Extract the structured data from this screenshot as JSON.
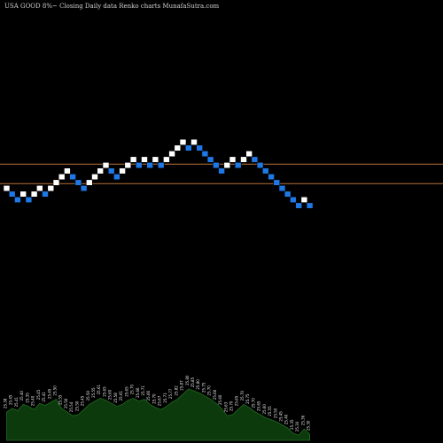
{
  "title": "USA GOOD 8%~  Closing Daily data  Renko  charts MunafaSutra.com",
  "colors": {
    "background": "#000000",
    "up_brick": "#ffffff",
    "down_brick": "#1e78e6",
    "brick_outline": "#000000",
    "level_line": "#b8733a",
    "volume_fill": "#0d3a0d",
    "volume_line": "#1f6a1f",
    "label": "#e8e8e8"
  },
  "chart_data": {
    "type": "renko",
    "title": "USA GOOD 8%~  Closing Daily data  Renko  charts MunafaSutra.com",
    "brick_size": 0.05,
    "bricks": [
      {
        "dir": "up",
        "close": 25.45
      },
      {
        "dir": "down",
        "close": 25.4
      },
      {
        "dir": "down",
        "close": 25.35
      },
      {
        "dir": "up",
        "close": 25.4
      },
      {
        "dir": "down",
        "close": 25.35
      },
      {
        "dir": "up",
        "close": 25.4
      },
      {
        "dir": "up",
        "close": 25.45
      },
      {
        "dir": "down",
        "close": 25.4
      },
      {
        "dir": "up",
        "close": 25.45
      },
      {
        "dir": "up",
        "close": 25.5
      },
      {
        "dir": "up",
        "close": 25.55
      },
      {
        "dir": "up",
        "close": 25.6
      },
      {
        "dir": "down",
        "close": 25.55
      },
      {
        "dir": "down",
        "close": 25.5
      },
      {
        "dir": "down",
        "close": 25.45
      },
      {
        "dir": "up",
        "close": 25.5
      },
      {
        "dir": "up",
        "close": 25.55
      },
      {
        "dir": "up",
        "close": 25.6
      },
      {
        "dir": "up",
        "close": 25.65
      },
      {
        "dir": "down",
        "close": 25.6
      },
      {
        "dir": "down",
        "close": 25.55
      },
      {
        "dir": "up",
        "close": 25.6
      },
      {
        "dir": "up",
        "close": 25.65
      },
      {
        "dir": "up",
        "close": 25.7
      },
      {
        "dir": "down",
        "close": 25.65
      },
      {
        "dir": "up",
        "close": 25.7
      },
      {
        "dir": "down",
        "close": 25.65
      },
      {
        "dir": "up",
        "close": 25.7
      },
      {
        "dir": "down",
        "close": 25.65
      },
      {
        "dir": "up",
        "close": 25.7
      },
      {
        "dir": "up",
        "close": 25.75
      },
      {
        "dir": "up",
        "close": 25.8
      },
      {
        "dir": "up",
        "close": 25.85
      },
      {
        "dir": "down",
        "close": 25.8
      },
      {
        "dir": "up",
        "close": 25.85
      },
      {
        "dir": "down",
        "close": 25.8
      },
      {
        "dir": "down",
        "close": 25.75
      },
      {
        "dir": "down",
        "close": 25.7
      },
      {
        "dir": "down",
        "close": 25.65
      },
      {
        "dir": "down",
        "close": 25.6
      },
      {
        "dir": "up",
        "close": 25.65
      },
      {
        "dir": "up",
        "close": 25.7
      },
      {
        "dir": "down",
        "close": 25.65
      },
      {
        "dir": "up",
        "close": 25.7
      },
      {
        "dir": "up",
        "close": 25.75
      },
      {
        "dir": "down",
        "close": 25.7
      },
      {
        "dir": "down",
        "close": 25.65
      },
      {
        "dir": "down",
        "close": 25.6
      },
      {
        "dir": "down",
        "close": 25.55
      },
      {
        "dir": "down",
        "close": 25.5
      },
      {
        "dir": "down",
        "close": 25.45
      },
      {
        "dir": "down",
        "close": 25.4
      },
      {
        "dir": "down",
        "close": 25.35
      },
      {
        "dir": "down",
        "close": 25.3
      },
      {
        "dir": "up",
        "close": 25.35
      },
      {
        "dir": "down",
        "close": 25.3
      }
    ],
    "reference_levels": [
      25.66,
      25.49
    ],
    "volume": [
      0.55,
      0.62,
      0.58,
      0.7,
      0.66,
      0.6,
      0.72,
      0.68,
      0.74,
      0.8,
      0.62,
      0.55,
      0.48,
      0.5,
      0.6,
      0.7,
      0.76,
      0.82,
      0.78,
      0.72,
      0.66,
      0.7,
      0.78,
      0.82,
      0.76,
      0.8,
      0.7,
      0.64,
      0.6,
      0.66,
      0.74,
      0.8,
      0.9,
      1.0,
      0.96,
      0.92,
      0.86,
      0.8,
      0.72,
      0.62,
      0.48,
      0.5,
      0.6,
      0.7,
      0.64,
      0.56,
      0.5,
      0.44,
      0.4,
      0.36,
      0.3,
      0.24,
      0.14,
      0.1,
      0.22,
      0.12
    ],
    "bar_labels": [
      "25.38",
      "25.45",
      "25.41",
      "25.40",
      "25.35",
      "25.40",
      "25.45",
      "25.41",
      "25.45",
      "25.50",
      "25.55",
      "25.56",
      "25.54",
      "25.50",
      "25.45",
      "25.50",
      "25.55",
      "25.61",
      "25.65",
      "25.60",
      "25.58",
      "25.61",
      "25.65",
      "25.70",
      "25.66",
      "25.71",
      "25.66",
      "25.70",
      "25.67",
      "25.71",
      "25.77",
      "25.82",
      "25.87",
      "25.80",
      "25.85",
      "25.80",
      "25.75",
      "25.70",
      "25.66",
      "25.60",
      "25.63",
      "25.70",
      "25.65",
      "25.70",
      "25.75",
      "25.70",
      "25.65",
      "25.60",
      "25.55",
      "25.50",
      "25.45",
      "25.40",
      "25.35",
      "25.30",
      "25.36",
      "25.30"
    ]
  }
}
